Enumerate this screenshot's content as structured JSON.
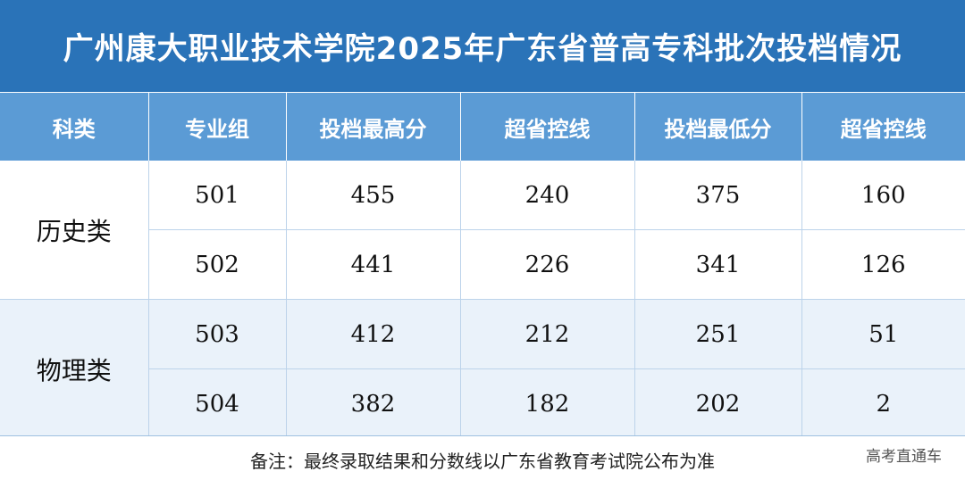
{
  "title": "广州康大职业技术学院2025年广东省普高专科批次投档情况",
  "columns": [
    "科类",
    "专业组",
    "投档最高分",
    "超省控线",
    "投档最低分",
    "超省控线"
  ],
  "groups": [
    {
      "category": "历史类",
      "rows": [
        [
          "501",
          "455",
          "240",
          "375",
          "160"
        ],
        [
          "502",
          "441",
          "226",
          "341",
          "126"
        ]
      ]
    },
    {
      "category": "物理类",
      "rows": [
        [
          "503",
          "412",
          "212",
          "251",
          "51"
        ],
        [
          "504",
          "382",
          "182",
          "202",
          "2"
        ]
      ]
    }
  ],
  "note": "备注：最终录取结果和分数线以广东省教育考试院公布为准",
  "watermark": "高考直通车",
  "colors": {
    "title_bg": "#2a73b8",
    "header_bg": "#5b9bd5",
    "band_bg": "#eaf2fa"
  }
}
